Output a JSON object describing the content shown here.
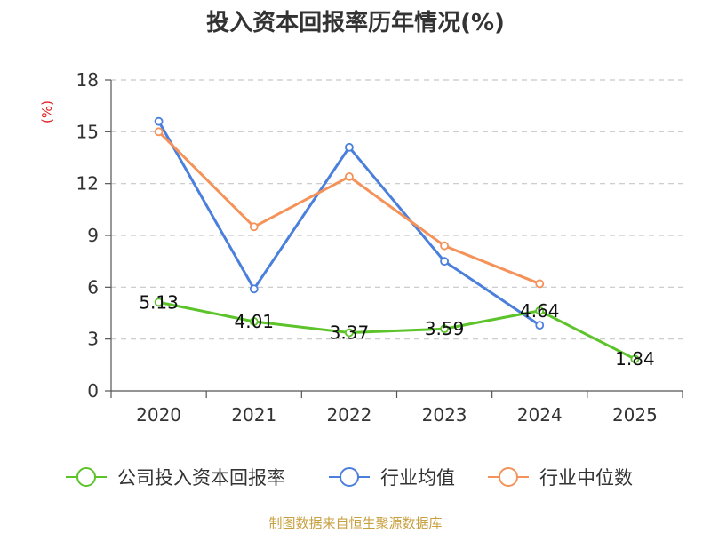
{
  "chart_data": {
    "type": "line",
    "title": "投入资本回报率历年情况(%)",
    "ylabel": "(%)",
    "xlabel": "",
    "categories": [
      "2020",
      "2021",
      "2022",
      "2023",
      "2024",
      "2025"
    ],
    "ylim": [
      0,
      18
    ],
    "yticks": [
      0,
      3,
      6,
      9,
      12,
      15,
      18
    ],
    "grid": true,
    "legend_position": "bottom",
    "series": [
      {
        "name": "公司投入资本回报率",
        "color": "#5cc42a",
        "values": [
          5.13,
          4.01,
          3.37,
          3.59,
          4.64,
          1.84
        ],
        "labels": [
          "5.13",
          "4.01",
          "3.37",
          "3.59",
          "4.64",
          "1.84"
        ],
        "show_labels": true
      },
      {
        "name": "行业均值",
        "color": "#4a7fdb",
        "values": [
          15.6,
          5.9,
          14.1,
          7.5,
          3.8,
          null
        ],
        "show_labels": false
      },
      {
        "name": "行业中位数",
        "color": "#f5925a",
        "values": [
          15.0,
          9.5,
          12.4,
          8.4,
          6.2,
          null
        ],
        "show_labels": false
      }
    ]
  },
  "footer": {
    "source": "制图数据来自恒生聚源数据库"
  }
}
